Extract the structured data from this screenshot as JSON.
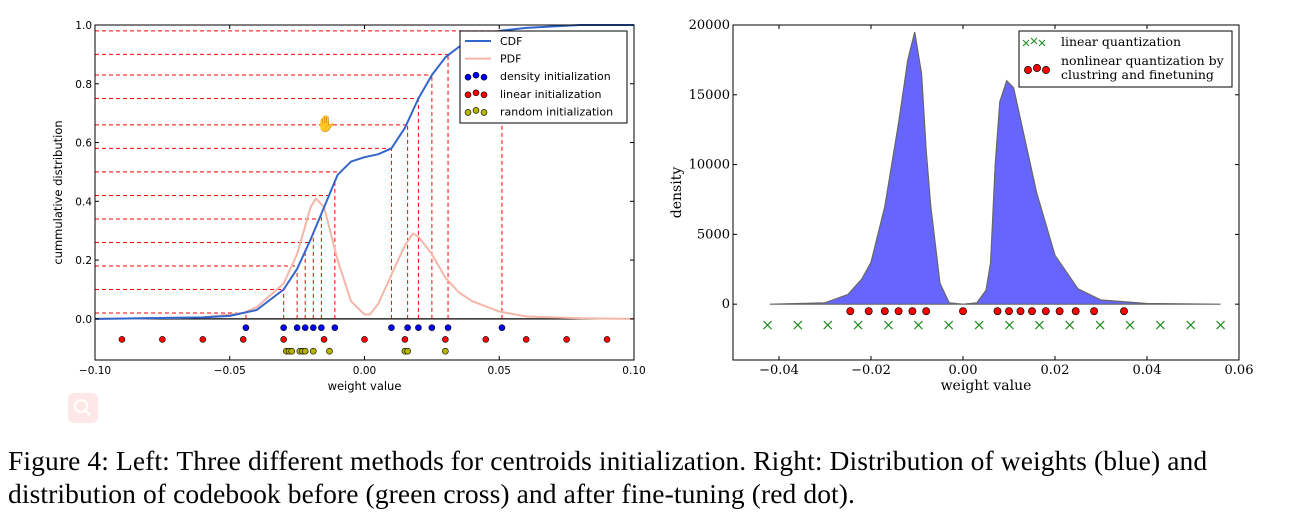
{
  "caption": "Figure 4: Left: Three different methods for centroids initialization. Right: Distribution of weights (blue) and distribution of codebook before (green cross) and after fine-tuning (red dot).",
  "colors": {
    "cdf": "#3366cc",
    "pdf": "#f4b6a8",
    "density": "#0000ff",
    "linear": "#ff0000",
    "random": "#b5b500",
    "hist": "#6666ff",
    "cross": "#228b22",
    "guide": "#ff0000"
  },
  "icons": {
    "cursor": "hand-cursor-icon",
    "overlay": "search-icon"
  },
  "chart_data": [
    {
      "type": "line",
      "xlabel": "weight value",
      "ylabel": "cummulative distribution",
      "xlim": [
        -0.1,
        0.1
      ],
      "ylim": [
        -0.14,
        1.0
      ],
      "xticks": [
        "−0.10",
        "−0.05",
        "0.00",
        "0.05",
        "0.10"
      ],
      "xtick_values": [
        -0.1,
        -0.05,
        0,
        0.05,
        0.1
      ],
      "yticks": [
        "0.0",
        "0.2",
        "0.4",
        "0.6",
        "0.8",
        "1.0"
      ],
      "ytick_values": [
        0,
        0.2,
        0.4,
        0.6,
        0.8,
        1.0
      ],
      "legend_position": "top-right",
      "series": [
        {
          "name": "CDF",
          "x": [
            -0.1,
            -0.06,
            -0.05,
            -0.04,
            -0.03,
            -0.025,
            -0.02,
            -0.015,
            -0.01,
            -0.005,
            0,
            0.005,
            0.01,
            0.015,
            0.02,
            0.025,
            0.03,
            0.035,
            0.04,
            0.05,
            0.06,
            0.08,
            0.1
          ],
          "y": [
            0,
            0.005,
            0.01,
            0.03,
            0.1,
            0.17,
            0.27,
            0.38,
            0.49,
            0.535,
            0.55,
            0.56,
            0.58,
            0.65,
            0.75,
            0.83,
            0.89,
            0.925,
            0.95,
            0.98,
            0.99,
            1.0,
            1.0
          ]
        },
        {
          "name": "PDF",
          "x": [
            -0.1,
            -0.06,
            -0.045,
            -0.04,
            -0.03,
            -0.025,
            -0.02,
            -0.018,
            -0.015,
            -0.01,
            -0.005,
            0,
            0.002,
            0.005,
            0.01,
            0.015,
            0.018,
            0.02,
            0.025,
            0.03,
            0.035,
            0.04,
            0.05,
            0.06,
            0.08,
            0.1
          ],
          "y": [
            0,
            0.005,
            0.02,
            0.04,
            0.12,
            0.22,
            0.38,
            0.41,
            0.38,
            0.2,
            0.06,
            0.015,
            0.015,
            0.05,
            0.15,
            0.25,
            0.29,
            0.28,
            0.22,
            0.14,
            0.09,
            0.06,
            0.025,
            0.008,
            0.002,
            0
          ]
        },
        {
          "name": "density initialization",
          "y_level": -0.03,
          "x": [
            -0.044,
            -0.03,
            -0.025,
            -0.022,
            -0.019,
            -0.016,
            -0.011,
            0.01,
            0.016,
            0.02,
            0.025,
            0.031,
            0.051
          ]
        },
        {
          "name": "linear initialization",
          "y_level": -0.07,
          "x": [
            -0.09,
            -0.075,
            -0.06,
            -0.045,
            -0.03,
            -0.015,
            0,
            0.015,
            0.03,
            0.045,
            0.06,
            0.075,
            0.09
          ]
        },
        {
          "name": "random initialization",
          "y_level": -0.11,
          "x": [
            -0.029,
            -0.028,
            -0.027,
            -0.024,
            -0.023,
            -0.022,
            -0.019,
            -0.013,
            0.015,
            0.016,
            0.03
          ]
        }
      ],
      "guide_levels": [
        0.02,
        0.1,
        0.18,
        0.26,
        0.34,
        0.42,
        0.5,
        0.58,
        0.66,
        0.75,
        0.83,
        0.9,
        0.98
      ]
    },
    {
      "type": "area",
      "xlabel": "weight value",
      "ylabel": "density",
      "xlim": [
        -0.05,
        0.06
      ],
      "ylim": [
        -4000,
        20000
      ],
      "xticks": [
        "−0.04",
        "−0.02",
        "0.00",
        "0.02",
        "0.04",
        "0.06"
      ],
      "xtick_values": [
        -0.04,
        -0.02,
        0,
        0.02,
        0.04,
        0.06
      ],
      "yticks": [
        "0",
        "5000",
        "10000",
        "15000",
        "20000"
      ],
      "ytick_values": [
        0,
        5000,
        10000,
        15000,
        20000
      ],
      "legend_position": "top-right",
      "distribution": {
        "x": [
          -0.042,
          -0.03,
          -0.025,
          -0.022,
          -0.02,
          -0.017,
          -0.014,
          -0.012,
          -0.0105,
          -0.009,
          -0.008,
          -0.007,
          -0.005,
          -0.003,
          0,
          0.003,
          0.005,
          0.006,
          0.007,
          0.008,
          0.0095,
          0.011,
          0.013,
          0.016,
          0.02,
          0.025,
          0.03,
          0.04,
          0.056
        ],
        "y": [
          0,
          100,
          700,
          1800,
          3000,
          7000,
          13000,
          17500,
          19500,
          16500,
          11000,
          7000,
          1500,
          100,
          0,
          100,
          1000,
          3000,
          10000,
          14500,
          16000,
          15500,
          12500,
          8000,
          3500,
          1100,
          300,
          50,
          0
        ]
      },
      "series": [
        {
          "name": "linear quantization",
          "marker": "cross",
          "y_level": -1500,
          "x": [
            -0.0425,
            -0.0359,
            -0.0294,
            -0.0228,
            -0.0162,
            -0.0097,
            -0.0031,
            0.0035,
            0.0101,
            0.0166,
            0.0232,
            0.0298,
            0.0363,
            0.0429,
            0.0495,
            0.056
          ]
        },
        {
          "name": "nonlinear quantization by clustring and finetuning",
          "name_lines": [
            "nonlinear quantization by",
            "clustring and finetuning"
          ],
          "marker": "dot",
          "y_level": -500,
          "x": [
            -0.0245,
            -0.0205,
            -0.017,
            -0.014,
            -0.011,
            -0.008,
            0,
            0.0075,
            0.01,
            0.0125,
            0.015,
            0.018,
            0.021,
            0.0245,
            0.0285,
            0.035
          ]
        }
      ]
    }
  ]
}
